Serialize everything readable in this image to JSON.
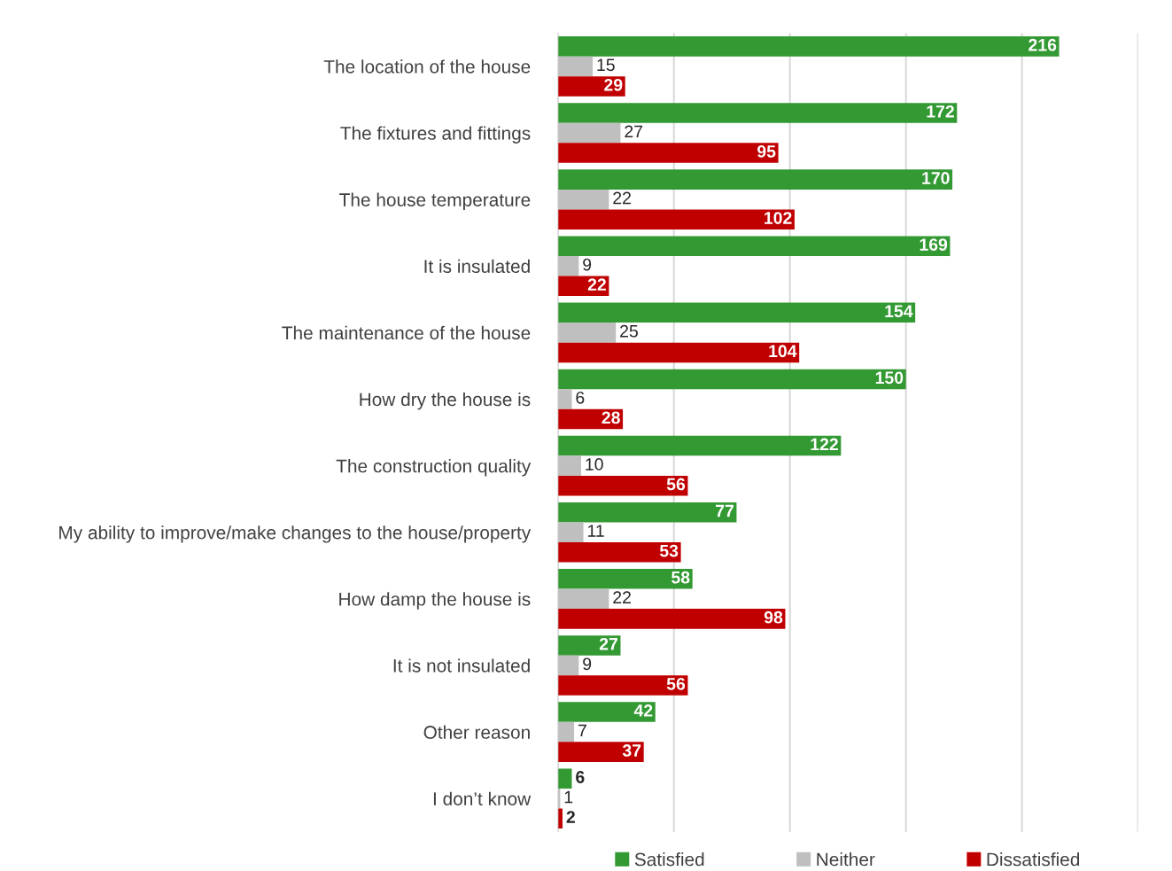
{
  "chart_data": {
    "type": "bar",
    "orientation": "horizontal",
    "categories": [
      "The location of the house",
      "The fixtures and fittings",
      "The house temperature",
      "It is insulated",
      "The maintenance of the house",
      "How dry the house is",
      "The construction quality",
      "My ability to improve/make changes to the house/property",
      "How damp the house is",
      "It is not insulated",
      "Other reason",
      "I don’t know"
    ],
    "series": [
      {
        "name": "Satisfied",
        "color": "#339933",
        "values": [
          216,
          172,
          170,
          169,
          154,
          150,
          122,
          77,
          58,
          27,
          42,
          6
        ]
      },
      {
        "name": "Neither",
        "color": "#bfbfbf",
        "values": [
          15,
          27,
          22,
          9,
          25,
          6,
          10,
          11,
          22,
          9,
          7,
          1
        ]
      },
      {
        "name": "Dissatisfied",
        "color": "#c00000",
        "values": [
          29,
          95,
          102,
          22,
          104,
          28,
          56,
          53,
          98,
          56,
          37,
          2
        ]
      }
    ],
    "xlim": [
      0,
      250
    ],
    "xticks": [
      {
        "value": 0,
        "label": null
      },
      {
        "value": 50,
        "label": null
      },
      {
        "value": 100,
        "label": null
      },
      {
        "value": 150,
        "label": null
      },
      {
        "value": 200,
        "label": null
      },
      {
        "value": 250,
        "label": null
      }
    ],
    "tick_labels": "y",
    "grid": "x",
    "legend": "bottom",
    "data_labels": true
  }
}
